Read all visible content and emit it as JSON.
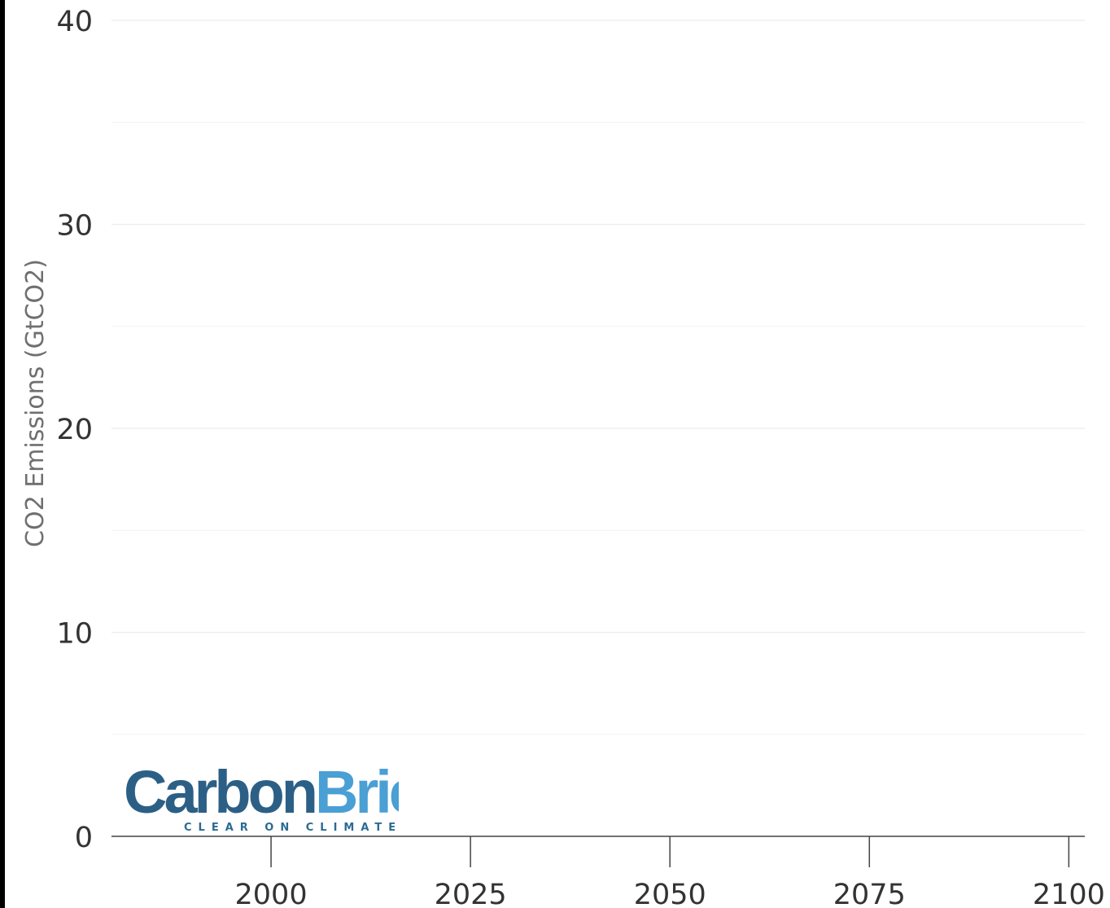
{
  "chart_data": {
    "type": "line",
    "title": "",
    "xlabel": "",
    "ylabel": "CO2 Emissions (GtCO2)",
    "xlim": [
      1980,
      2102
    ],
    "ylim": [
      0,
      40
    ],
    "xticks": [
      2000,
      2025,
      2050,
      2075,
      2100
    ],
    "yticks": [
      0,
      10,
      20,
      30,
      40
    ],
    "grid": true,
    "series": []
  },
  "logo": {
    "word_dark": "Carbon",
    "word_light": "Brief",
    "tagline": "CLEAR ON CLIMATE",
    "color_dark": "#2c5f85",
    "color_light": "#4a9fd4"
  }
}
